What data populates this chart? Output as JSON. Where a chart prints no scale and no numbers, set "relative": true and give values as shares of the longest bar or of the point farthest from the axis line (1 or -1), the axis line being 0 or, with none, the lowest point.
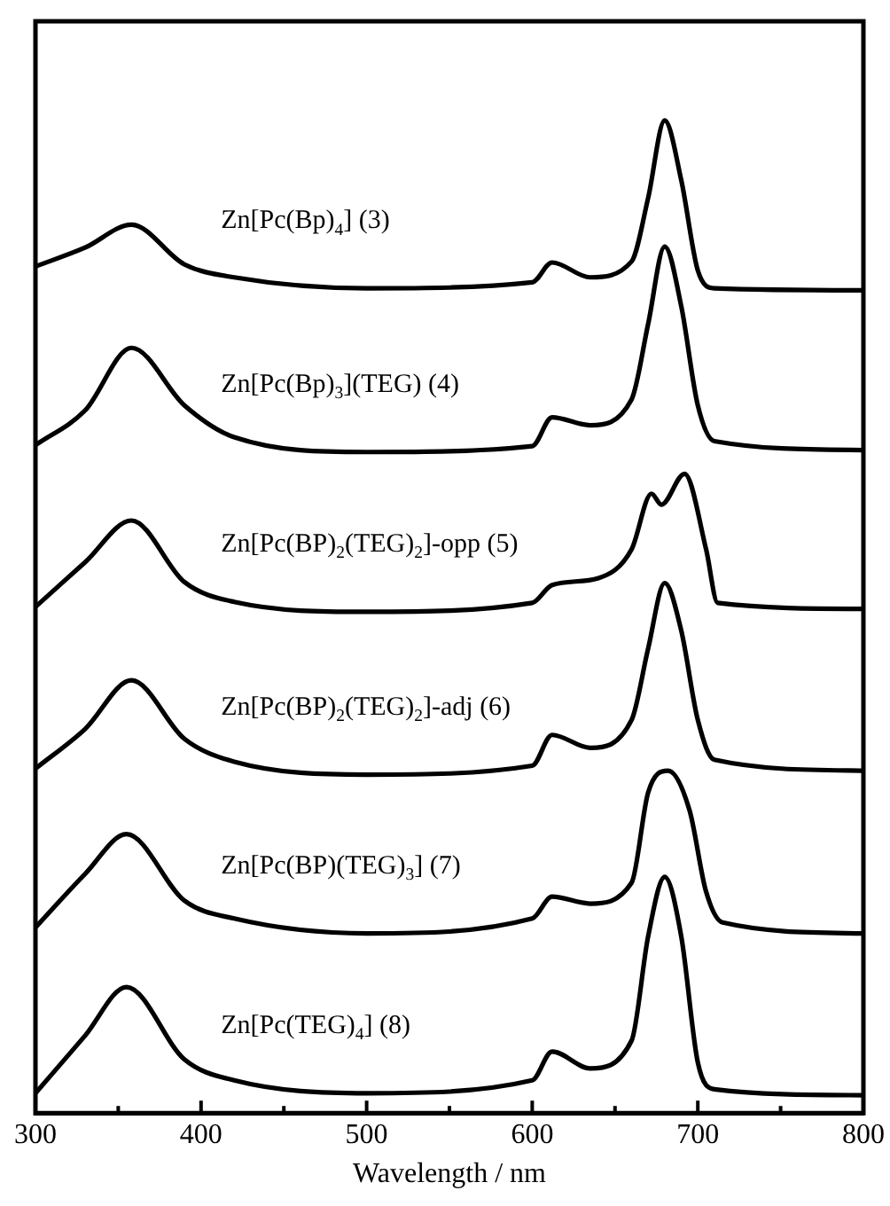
{
  "chart_data": {
    "type": "line",
    "xlabel": "Wavelength / nm",
    "relative": true,
    "grid": false,
    "legend": false,
    "marker": "none",
    "line_style": "solid",
    "xlim": [
      300,
      800
    ],
    "xticks": [
      300,
      {
        "value": 350,
        "label": null
      },
      400,
      {
        "value": 450,
        "label": null
      },
      500,
      {
        "value": 550,
        "label": null
      },
      600,
      {
        "value": 650,
        "label": null
      },
      700,
      {
        "value": 750,
        "label": null
      },
      800
    ],
    "x": [
      300,
      330,
      358,
      390,
      420,
      500,
      600,
      612,
      635,
      660,
      670,
      680,
      690,
      700,
      710,
      800
    ],
    "series": [
      {
        "name": "Zn[Pc(Bp)$_{4}$] (3)",
        "color": "#000000",
        "values": [
          0.853,
          0.872,
          0.895,
          0.855,
          0.842,
          0.831,
          0.837,
          0.857,
          0.842,
          0.858,
          0.922,
          1.0,
          0.94,
          0.849,
          0.831,
          0.829
        ]
      },
      {
        "name": "Zn[Pc(Bp)$_{3}$](TEG) (4)",
        "color": "#000000",
        "values": [
          0.673,
          0.708,
          0.771,
          0.713,
          0.681,
          0.666,
          0.672,
          0.701,
          0.693,
          0.719,
          0.795,
          0.873,
          0.813,
          0.713,
          0.677,
          0.668
        ]
      },
      {
        "name": "Zn[Pc(BP)$_{2}$(TEG)$_{2}$]-opp (5)",
        "color": "#000000",
        "x": [
          300,
          330,
          358,
          390,
          420,
          500,
          600,
          612,
          640,
          660,
          672,
          678,
          692,
          705,
          712,
          800
        ],
        "values": [
          0.51,
          0.555,
          0.597,
          0.535,
          0.515,
          0.505,
          0.514,
          0.532,
          0.539,
          0.568,
          0.624,
          0.613,
          0.644,
          0.568,
          0.514,
          0.508
        ]
      },
      {
        "name": "Zn[Pc(BP)$_{2}$(TEG)$_{2}$]-adj (6)",
        "color": "#000000",
        "values": [
          0.347,
          0.387,
          0.436,
          0.377,
          0.354,
          0.341,
          0.35,
          0.381,
          0.368,
          0.396,
          0.468,
          0.534,
          0.486,
          0.396,
          0.356,
          0.345
        ]
      },
      {
        "name": "Zn[Pc(BP)(TEG)$_{3}$] (7)",
        "color": "#000000",
        "x": [
          300,
          330,
          355,
          390,
          420,
          500,
          600,
          612,
          635,
          660,
          670,
          682,
          695,
          705,
          715,
          800
        ],
        "values": [
          0.187,
          0.241,
          0.281,
          0.214,
          0.196,
          0.181,
          0.196,
          0.218,
          0.211,
          0.232,
          0.323,
          0.345,
          0.305,
          0.223,
          0.192,
          0.181
        ]
      },
      {
        "name": "Zn[Pc(TEG)$_{4}$] (8)",
        "color": "#000000",
        "x": [
          300,
          330,
          355,
          390,
          420,
          500,
          600,
          612,
          635,
          660,
          670,
          680,
          690,
          700,
          710,
          800
        ],
        "values": [
          0.02,
          0.078,
          0.127,
          0.054,
          0.033,
          0.02,
          0.033,
          0.062,
          0.045,
          0.073,
          0.178,
          0.238,
          0.178,
          0.051,
          0.024,
          0.018
        ]
      }
    ]
  }
}
